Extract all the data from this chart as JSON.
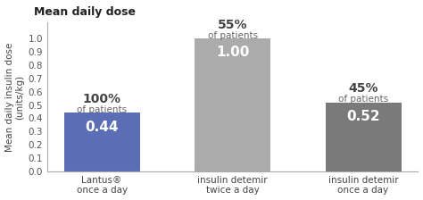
{
  "title": "Mean daily dose",
  "ylabel": "Mean daily insulin dose\n(units/kg)",
  "categories": [
    "Lantus®\nonce a day",
    "insulin detemir\ntwice a day",
    "insulin detemir\nonce a day"
  ],
  "values": [
    0.44,
    1.0,
    0.52
  ],
  "bar_colors": [
    "#5B6DB5",
    "#ABABAB",
    "#7A7A7A"
  ],
  "bar_labels": [
    "0.44",
    "1.00",
    "0.52"
  ],
  "pct_labels": [
    "100%",
    "55%",
    "45%"
  ],
  "pct_sublabels": [
    "of patients",
    "of patients",
    "of patients"
  ],
  "ylim": [
    0,
    1.12
  ],
  "yticks": [
    0.0,
    0.1,
    0.2,
    0.3,
    0.4,
    0.5,
    0.6,
    0.7,
    0.8,
    0.9,
    1.0
  ],
  "background_color": "#ffffff",
  "title_fontsize": 9,
  "ylabel_fontsize": 7.5,
  "bar_label_fontsize": 11,
  "pct_fontsize": 10,
  "sub_fontsize": 7.5,
  "tick_fontsize": 7.5,
  "xlabel_fontsize": 7.5
}
